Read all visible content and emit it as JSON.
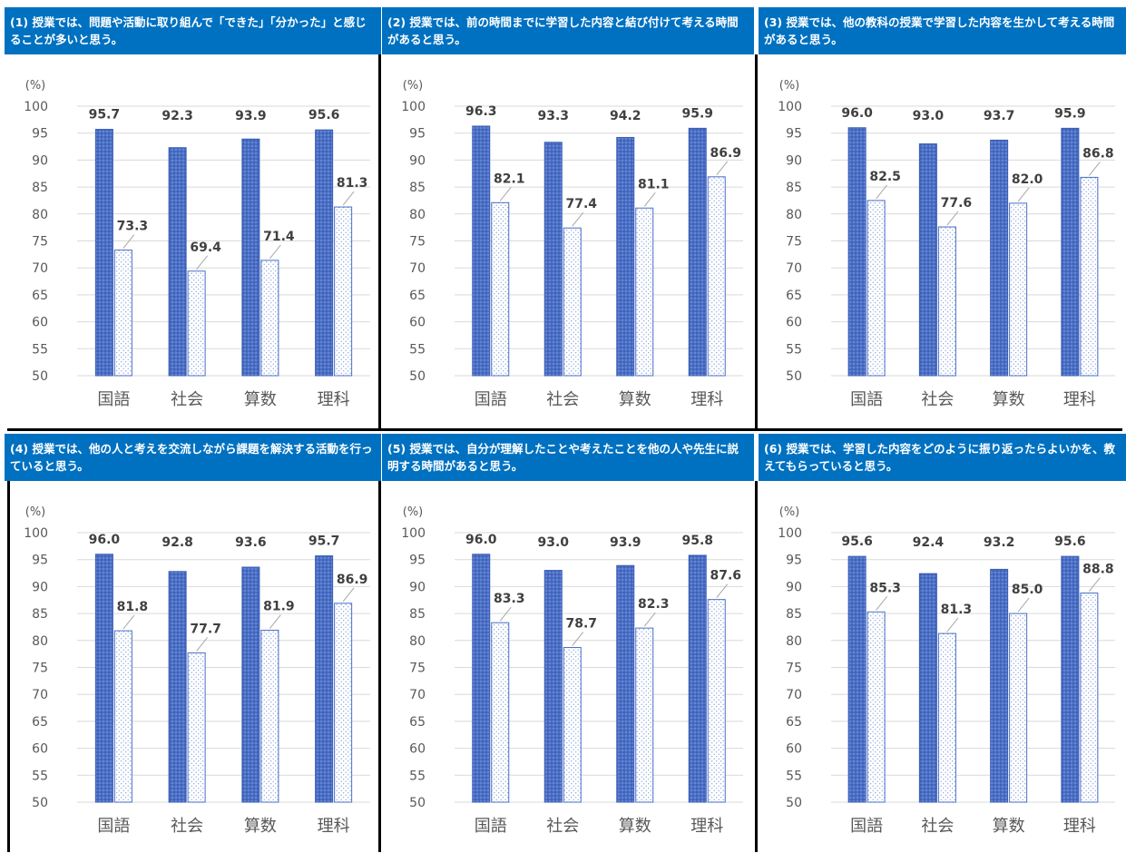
{
  "colors": {
    "header_bg": "#0071c1",
    "series_a": "#4a6fc7",
    "grid": "#d9d9d9",
    "axis_text": "#595959",
    "label_text": "#404040"
  },
  "chart_data": [
    {
      "type": "bar",
      "title": "(1) 授業では、問題や活動に取り組んで「できた」「分かった」と感じることが多いと思う。",
      "unit_label": "(%)",
      "categories": [
        "国語",
        "社会",
        "算数",
        "理科"
      ],
      "ylim": [
        50,
        100
      ],
      "yticks": [
        50,
        55,
        60,
        65,
        70,
        75,
        80,
        85,
        90,
        95,
        100
      ],
      "series": [
        {
          "values": [
            95.7,
            92.3,
            93.9,
            95.6
          ],
          "labels": [
            "95.7",
            "92.3",
            "93.9",
            "95.6"
          ],
          "style": "solid-dotted"
        },
        {
          "values": [
            73.3,
            69.4,
            71.4,
            81.3
          ],
          "labels": [
            "73.3",
            "69.4",
            "71.4",
            "81.3"
          ],
          "style": "white-dotted"
        }
      ],
      "grid": true,
      "legend": "none"
    },
    {
      "type": "bar",
      "title": "(2) 授業では、前の時間までに学習した内容と結び付けて考える時間があると思う。",
      "unit_label": "(%)",
      "categories": [
        "国語",
        "社会",
        "算数",
        "理科"
      ],
      "ylim": [
        50,
        100
      ],
      "yticks": [
        50,
        55,
        60,
        65,
        70,
        75,
        80,
        85,
        90,
        95,
        100
      ],
      "series": [
        {
          "values": [
            96.3,
            93.3,
            94.2,
            95.9
          ],
          "labels": [
            "96.3",
            "93.3",
            "94.2",
            "95.9"
          ],
          "style": "solid-dotted"
        },
        {
          "values": [
            82.1,
            77.4,
            81.1,
            86.9
          ],
          "labels": [
            "82.1",
            "77.4",
            "81.1",
            "86.9"
          ],
          "style": "white-dotted"
        }
      ],
      "grid": true,
      "legend": "none"
    },
    {
      "type": "bar",
      "title": "(3) 授業では、他の教科の授業で学習した内容を生かして考える時間があると思う。",
      "unit_label": "(%)",
      "categories": [
        "国語",
        "社会",
        "算数",
        "理科"
      ],
      "ylim": [
        50,
        100
      ],
      "yticks": [
        50,
        55,
        60,
        65,
        70,
        75,
        80,
        85,
        90,
        95,
        100
      ],
      "series": [
        {
          "values": [
            96.0,
            93.0,
            93.7,
            95.9
          ],
          "labels": [
            "96.0",
            "93.0",
            "93.7",
            "95.9"
          ],
          "style": "solid-dotted"
        },
        {
          "values": [
            82.5,
            77.6,
            82.0,
            86.8
          ],
          "labels": [
            "82.5",
            "77.6",
            "82.0",
            "86.8"
          ],
          "style": "white-dotted"
        }
      ],
      "grid": true,
      "legend": "none"
    },
    {
      "type": "bar",
      "title": "(4) 授業では、他の人と考えを交流しながら課題を解決する活動を行っていると思う。",
      "unit_label": "(%)",
      "categories": [
        "国語",
        "社会",
        "算数",
        "理科"
      ],
      "ylim": [
        50,
        100
      ],
      "yticks": [
        50,
        55,
        60,
        65,
        70,
        75,
        80,
        85,
        90,
        95,
        100
      ],
      "series": [
        {
          "values": [
            96.0,
            92.8,
            93.6,
            95.7
          ],
          "labels": [
            "96.0",
            "92.8",
            "93.6",
            "95.7"
          ],
          "style": "solid-dotted"
        },
        {
          "values": [
            81.8,
            77.7,
            81.9,
            86.9
          ],
          "labels": [
            "81.8",
            "77.7",
            "81.9",
            "86.9"
          ],
          "style": "white-dotted"
        }
      ],
      "grid": true,
      "legend": "none"
    },
    {
      "type": "bar",
      "title": "(5) 授業では、自分が理解したことや考えたことを他の人や先生に説明する時間があると思う。",
      "unit_label": "(%)",
      "categories": [
        "国語",
        "社会",
        "算数",
        "理科"
      ],
      "ylim": [
        50,
        100
      ],
      "yticks": [
        50,
        55,
        60,
        65,
        70,
        75,
        80,
        85,
        90,
        95,
        100
      ],
      "series": [
        {
          "values": [
            96.0,
            93.0,
            93.9,
            95.8
          ],
          "labels": [
            "96.0",
            "93.0",
            "93.9",
            "95.8"
          ],
          "style": "solid-dotted"
        },
        {
          "values": [
            83.3,
            78.7,
            82.3,
            87.6
          ],
          "labels": [
            "83.3",
            "78.7",
            "82.3",
            "87.6"
          ],
          "style": "white-dotted"
        }
      ],
      "grid": true,
      "legend": "none"
    },
    {
      "type": "bar",
      "title": "(6) 授業では、学習した内容をどのように振り返ったらよいかを、教えてもらっていると思う。",
      "unit_label": "(%)",
      "categories": [
        "国語",
        "社会",
        "算数",
        "理科"
      ],
      "ylim": [
        50,
        100
      ],
      "yticks": [
        50,
        55,
        60,
        65,
        70,
        75,
        80,
        85,
        90,
        95,
        100
      ],
      "series": [
        {
          "values": [
            95.6,
            92.4,
            93.2,
            95.6
          ],
          "labels": [
            "95.6",
            "92.4",
            "93.2",
            "95.6"
          ],
          "style": "solid-dotted"
        },
        {
          "values": [
            85.3,
            81.3,
            85.0,
            88.8
          ],
          "labels": [
            "85.3",
            "81.3",
            "85.0",
            "88.8"
          ],
          "style": "white-dotted"
        }
      ],
      "grid": true,
      "legend": "none"
    }
  ]
}
